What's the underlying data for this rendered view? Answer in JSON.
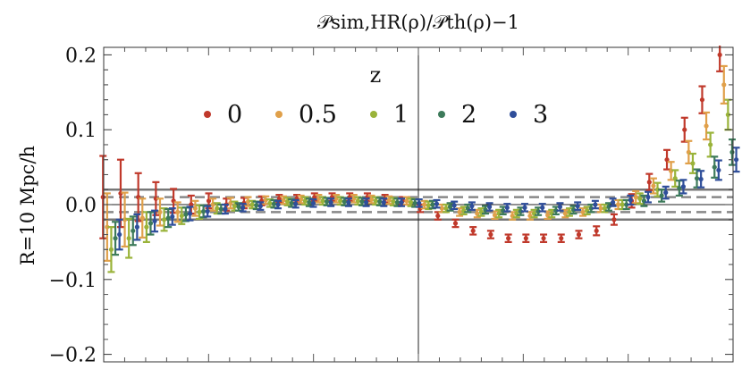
{
  "chart_data": {
    "type": "scatter",
    "title": "𝒫sim,HR(ρ)/𝒫th(ρ)−1",
    "ylabel": "R=10 Mpc/h",
    "xlabel": "",
    "ylim": [
      -0.21,
      0.21
    ],
    "yticks": [
      {
        "value": 0.2,
        "label": "0.2"
      },
      {
        "value": 0.1,
        "label": "0.1"
      },
      {
        "value": 0.0,
        "label": "0.0"
      },
      {
        "value": -0.1,
        "label": "−0.1"
      },
      {
        "value": -0.2,
        "label": "−0.2"
      }
    ],
    "xlim": [
      0,
      1
    ],
    "x_ticks_unlabeled": 30,
    "vertical_line_x": 0.5,
    "reference_lines": [
      {
        "y": 0.02,
        "style": "solid"
      },
      {
        "y": -0.02,
        "style": "solid"
      },
      {
        "y": 0.01,
        "style": "dashed"
      },
      {
        "y": -0.01,
        "style": "dashed"
      },
      {
        "y": 0.0,
        "style": "solid-thin"
      }
    ],
    "legend": {
      "title": "z",
      "position": "top"
    },
    "x": [
      0.012,
      0.04,
      0.068,
      0.096,
      0.124,
      0.152,
      0.18,
      0.208,
      0.236,
      0.264,
      0.292,
      0.32,
      0.348,
      0.376,
      0.404,
      0.432,
      0.46,
      0.488,
      0.516,
      0.544,
      0.572,
      0.6,
      0.628,
      0.656,
      0.684,
      0.712,
      0.74,
      0.768,
      0.796,
      0.824,
      0.852,
      0.88,
      0.908,
      0.936,
      0.964,
      0.992
    ],
    "series": [
      {
        "name": "0",
        "color": "#c0392b",
        "values": [
          0.01,
          0.015,
          0.01,
          0.008,
          0.005,
          0.0,
          0.005,
          0.0,
          0.002,
          0.005,
          0.008,
          0.008,
          0.01,
          0.01,
          0.01,
          0.01,
          0.008,
          0.005,
          -0.005,
          -0.015,
          -0.025,
          -0.035,
          -0.04,
          -0.045,
          -0.045,
          -0.045,
          -0.045,
          -0.04,
          -0.035,
          -0.02,
          0.005,
          0.03,
          0.06,
          0.1,
          0.14,
          0.2
        ],
        "errors": [
          0.055,
          0.045,
          0.032,
          0.022,
          0.016,
          0.012,
          0.01,
          0.008,
          0.007,
          0.006,
          0.005,
          0.005,
          0.005,
          0.005,
          0.005,
          0.005,
          0.005,
          0.005,
          0.005,
          0.005,
          0.005,
          0.005,
          0.005,
          0.005,
          0.005,
          0.005,
          0.005,
          0.005,
          0.006,
          0.007,
          0.009,
          0.011,
          0.013,
          0.016,
          0.018,
          0.022
        ]
      },
      {
        "name": "0.5",
        "color": "#e0a04a",
        "values": [
          -0.03,
          -0.02,
          -0.018,
          -0.01,
          -0.01,
          -0.005,
          0.0,
          0.002,
          0.004,
          0.006,
          0.006,
          0.007,
          0.008,
          0.008,
          0.008,
          0.007,
          0.006,
          0.005,
          0.0,
          -0.005,
          -0.01,
          -0.012,
          -0.014,
          -0.015,
          -0.015,
          -0.014,
          -0.012,
          -0.01,
          -0.005,
          0.0,
          0.01,
          0.025,
          0.045,
          0.07,
          0.105,
          0.16
        ],
        "errors": [
          0.045,
          0.036,
          0.026,
          0.018,
          0.013,
          0.01,
          0.008,
          0.007,
          0.006,
          0.005,
          0.005,
          0.005,
          0.005,
          0.005,
          0.005,
          0.005,
          0.005,
          0.005,
          0.005,
          0.005,
          0.005,
          0.005,
          0.005,
          0.005,
          0.005,
          0.005,
          0.005,
          0.005,
          0.005,
          0.006,
          0.008,
          0.01,
          0.012,
          0.015,
          0.018,
          0.025
        ]
      },
      {
        "name": "1",
        "color": "#9ab33a",
        "values": [
          -0.06,
          -0.045,
          -0.03,
          -0.02,
          -0.015,
          -0.01,
          -0.005,
          -0.002,
          0.0,
          0.002,
          0.004,
          0.005,
          0.005,
          0.005,
          0.005,
          0.005,
          0.004,
          0.003,
          -0.001,
          -0.005,
          -0.008,
          -0.01,
          -0.012,
          -0.012,
          -0.012,
          -0.012,
          -0.01,
          -0.008,
          -0.005,
          0.0,
          0.008,
          0.02,
          0.035,
          0.055,
          0.08,
          0.12
        ],
        "errors": [
          0.03,
          0.026,
          0.02,
          0.015,
          0.011,
          0.009,
          0.007,
          0.006,
          0.005,
          0.005,
          0.005,
          0.005,
          0.005,
          0.005,
          0.005,
          0.005,
          0.005,
          0.005,
          0.005,
          0.005,
          0.005,
          0.005,
          0.005,
          0.005,
          0.005,
          0.005,
          0.005,
          0.005,
          0.005,
          0.006,
          0.007,
          0.009,
          0.011,
          0.013,
          0.016,
          0.02
        ]
      },
      {
        "name": "2",
        "color": "#3d7a5a",
        "values": [
          -0.045,
          -0.035,
          -0.025,
          -0.018,
          -0.013,
          -0.009,
          -0.006,
          -0.003,
          -0.001,
          0.001,
          0.002,
          0.003,
          0.004,
          0.004,
          0.004,
          0.004,
          0.003,
          0.002,
          0.0,
          -0.003,
          -0.005,
          -0.007,
          -0.008,
          -0.009,
          -0.009,
          -0.008,
          -0.007,
          -0.005,
          -0.003,
          0.0,
          0.005,
          0.012,
          0.022,
          0.035,
          0.05,
          0.07
        ],
        "errors": [
          0.022,
          0.019,
          0.015,
          0.012,
          0.009,
          0.008,
          0.006,
          0.005,
          0.005,
          0.005,
          0.005,
          0.005,
          0.005,
          0.005,
          0.005,
          0.005,
          0.005,
          0.005,
          0.005,
          0.005,
          0.005,
          0.005,
          0.005,
          0.005,
          0.005,
          0.005,
          0.005,
          0.005,
          0.005,
          0.006,
          0.007,
          0.008,
          0.01,
          0.012,
          0.014,
          0.017
        ]
      },
      {
        "name": "3",
        "color": "#2f4e9a",
        "values": [
          -0.04,
          -0.03,
          -0.022,
          -0.016,
          -0.012,
          -0.009,
          -0.006,
          -0.004,
          -0.002,
          0.0,
          0.001,
          0.002,
          0.003,
          0.003,
          0.003,
          0.003,
          0.003,
          0.002,
          0.001,
          -0.001,
          -0.002,
          -0.003,
          -0.004,
          -0.004,
          -0.004,
          -0.003,
          -0.002,
          0.0,
          0.003,
          0.006,
          0.01,
          0.016,
          0.024,
          0.034,
          0.046,
          0.06
        ],
        "errors": [
          0.02,
          0.017,
          0.014,
          0.011,
          0.009,
          0.007,
          0.006,
          0.005,
          0.005,
          0.005,
          0.005,
          0.005,
          0.005,
          0.005,
          0.005,
          0.005,
          0.005,
          0.005,
          0.005,
          0.005,
          0.005,
          0.005,
          0.005,
          0.005,
          0.005,
          0.005,
          0.005,
          0.005,
          0.005,
          0.006,
          0.007,
          0.008,
          0.009,
          0.011,
          0.013,
          0.016
        ]
      }
    ]
  }
}
